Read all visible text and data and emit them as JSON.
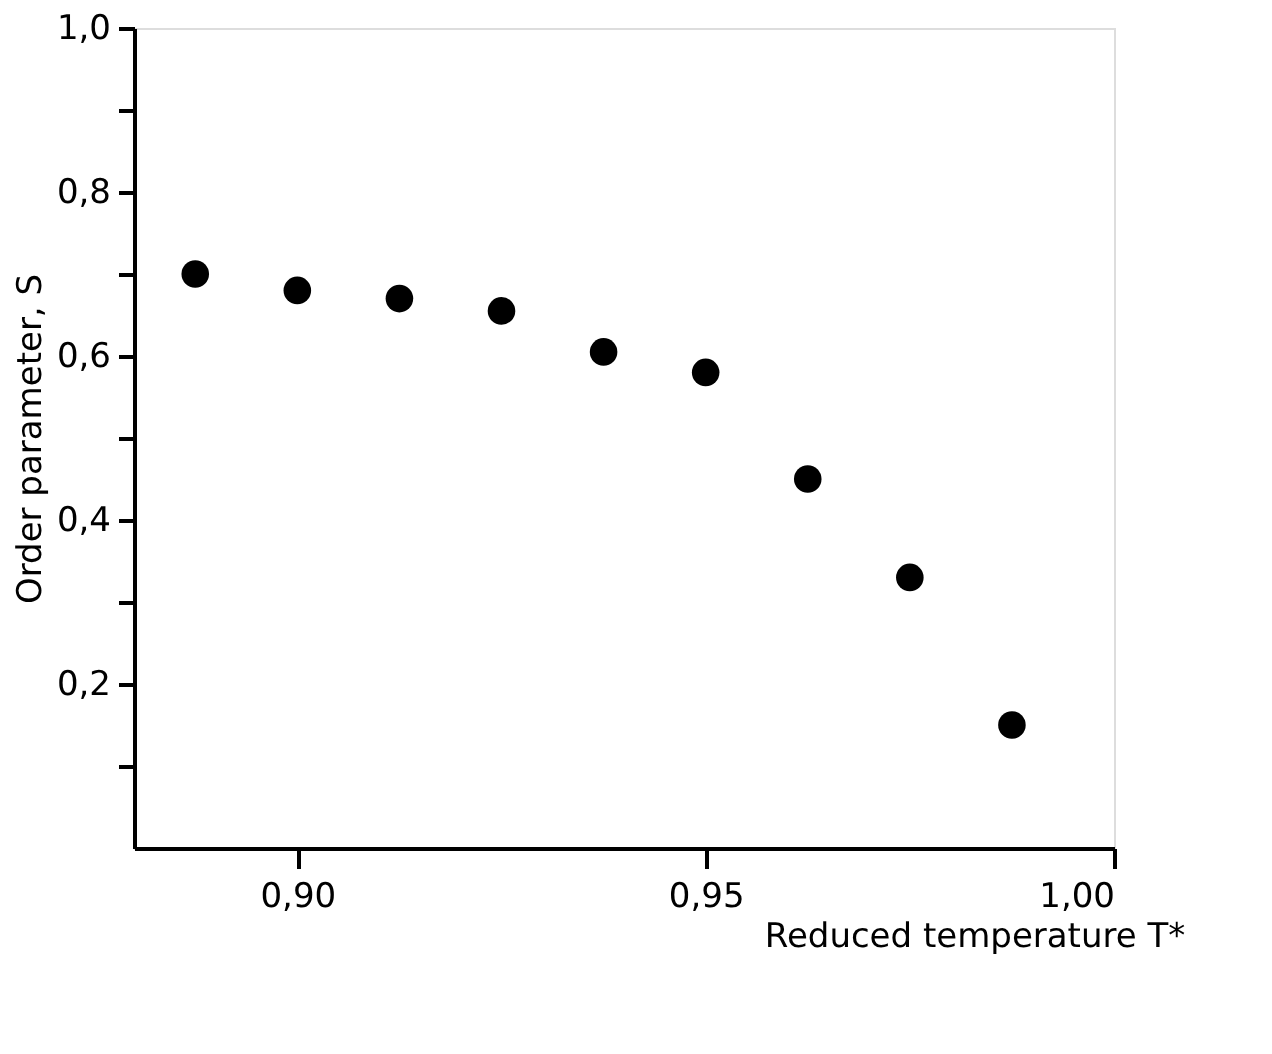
{
  "chart_data": {
    "type": "scatter",
    "xlabel": "Reduced temperature T*",
    "ylabel": "Order parameter, S",
    "x": [
      0.8875,
      0.9,
      0.9125,
      0.925,
      0.9375,
      0.95,
      0.9625,
      0.975,
      0.9875
    ],
    "series": [
      {
        "color": "#000000",
        "values": [
          0.7,
          0.68,
          0.67,
          0.655,
          0.605,
          0.58,
          0.45,
          0.33,
          0.15
        ]
      }
    ],
    "xlim": [
      0.88,
      1.0
    ],
    "xticks": [
      {
        "value": 0.9,
        "label": "0,90"
      },
      {
        "value": 0.95,
        "label": "0,95"
      },
      {
        "value": 1.0,
        "label": "1,00"
      }
    ],
    "ylim": [
      0,
      1.0
    ],
    "yticks": [
      {
        "value": 0.1,
        "label": null
      },
      {
        "value": 0.2,
        "label": "0,2"
      },
      {
        "value": 0.3,
        "label": null
      },
      {
        "value": 0.4,
        "label": "0,4"
      },
      {
        "value": 0.5,
        "label": null
      },
      {
        "value": 0.6,
        "label": "0,6"
      },
      {
        "value": 0.7,
        "label": null
      },
      {
        "value": 0.8,
        "label": "0,8"
      },
      {
        "value": 0.9,
        "label": null
      },
      {
        "value": 1.0,
        "label": "1,0"
      }
    ],
    "grid": false,
    "marker": "circle"
  }
}
